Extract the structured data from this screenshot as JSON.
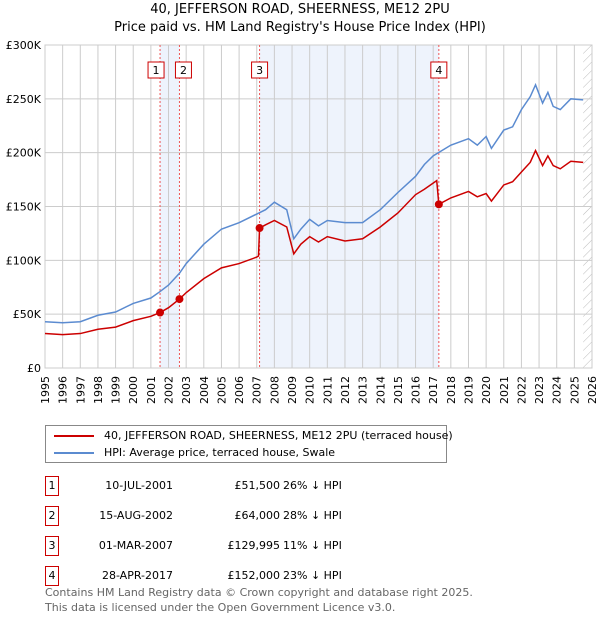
{
  "chart_data": {
    "type": "line",
    "title": "40, JEFFERSON ROAD, SHEERNESS, ME12 2PU",
    "subtitle": "Price paid vs. HM Land Registry's House Price Index (HPI)",
    "xlim": [
      1995,
      2026
    ],
    "ylim": [
      0,
      300000
    ],
    "x_ticks": [
      "1995",
      "1996",
      "1997",
      "1998",
      "1999",
      "2000",
      "2001",
      "2002",
      "2003",
      "2004",
      "2005",
      "2006",
      "2007",
      "2008",
      "2009",
      "2010",
      "2011",
      "2012",
      "2013",
      "2014",
      "2015",
      "2016",
      "2017",
      "2018",
      "2019",
      "2020",
      "2021",
      "2022",
      "2023",
      "2024",
      "2025",
      "2026"
    ],
    "y_ticks": [
      {
        "v": 0,
        "l": "£0"
      },
      {
        "v": 50000,
        "l": "£50K"
      },
      {
        "v": 100000,
        "l": "£100K"
      },
      {
        "v": 150000,
        "l": "£150K"
      },
      {
        "v": 200000,
        "l": "£200K"
      },
      {
        "v": 250000,
        "l": "£250K"
      },
      {
        "v": 300000,
        "l": "£300K"
      }
    ],
    "grid": true,
    "shaded_ranges": [
      [
        2001.52,
        2002.62
      ],
      [
        2007.16,
        2017.32
      ]
    ],
    "forecast_from": 2025.5,
    "series": [
      {
        "name": "40, JEFFERSON ROAD, SHEERNESS, ME12 2PU (terraced house)",
        "color": "#cc0000",
        "x": [
          1995,
          1996,
          1997,
          1998,
          1999,
          2000,
          2001,
          2001.52,
          2002,
          2002.62,
          2003,
          2004,
          2005,
          2006,
          2007,
          2007.1,
          2007.16,
          2007.5,
          2008,
          2008.7,
          2009.1,
          2009.5,
          2010,
          2010.5,
          2011,
          2012,
          2013,
          2014,
          2015,
          2016,
          2016.5,
          2017.2,
          2017.32,
          2018,
          2019,
          2019.5,
          2020,
          2020.3,
          2021,
          2021.5,
          2022,
          2022.5,
          2022.8,
          2023.2,
          2023.5,
          2023.8,
          2024.2,
          2024.8,
          2025.5
        ],
        "y": [
          32000,
          31000,
          32000,
          36000,
          38000,
          44000,
          48000,
          51500,
          56000,
          64000,
          70000,
          83000,
          93000,
          97000,
          103000,
          104000,
          129995,
          133000,
          137000,
          131000,
          106000,
          115000,
          122000,
          117000,
          122000,
          118000,
          120000,
          131000,
          144000,
          161000,
          166000,
          174000,
          152000,
          158000,
          164000,
          159000,
          162000,
          155000,
          170000,
          173000,
          182000,
          191000,
          202000,
          188000,
          197000,
          188000,
          185000,
          192000,
          191000
        ]
      },
      {
        "name": "HPI: Average price, terraced house, Swale",
        "color": "#5b8bd0",
        "x": [
          1995,
          1996,
          1997,
          1998,
          1999,
          2000,
          2001,
          2001.52,
          2002,
          2002.62,
          2003,
          2004,
          2005,
          2006,
          2007,
          2007.5,
          2008,
          2008.7,
          2009.1,
          2009.5,
          2010,
          2010.5,
          2011,
          2012,
          2013,
          2014,
          2015,
          2016,
          2016.5,
          2017,
          2018,
          2019,
          2019.5,
          2020,
          2020.3,
          2021,
          2021.5,
          2022,
          2022.5,
          2022.8,
          2023.2,
          2023.5,
          2023.8,
          2024.2,
          2024.8,
          2025.5
        ],
        "y": [
          43000,
          42000,
          43000,
          49000,
          52000,
          60000,
          65000,
          71000,
          77000,
          88000,
          97000,
          115000,
          129000,
          135000,
          143000,
          147000,
          154000,
          147000,
          120000,
          129000,
          138000,
          132000,
          137000,
          135000,
          135000,
          147000,
          163000,
          178000,
          189000,
          197000,
          207000,
          213000,
          207000,
          215000,
          204000,
          221000,
          224000,
          240000,
          252000,
          263000,
          246000,
          256000,
          243000,
          240000,
          250000,
          249000
        ]
      }
    ],
    "sales": [
      {
        "n": "1",
        "x": 2001.52,
        "y": 51500,
        "date": "10-JUL-2001",
        "price": "£51,500",
        "hpi": "26% ↓ HPI"
      },
      {
        "n": "2",
        "x": 2002.62,
        "y": 64000,
        "date": "15-AUG-2002",
        "price": "£64,000",
        "hpi": "28% ↓ HPI"
      },
      {
        "n": "3",
        "x": 2007.16,
        "y": 129995,
        "date": "01-MAR-2007",
        "price": "£129,995",
        "hpi": "11% ↓ HPI"
      },
      {
        "n": "4",
        "x": 2017.32,
        "y": 152000,
        "date": "28-APR-2017",
        "price": "£152,000",
        "hpi": "23% ↓ HPI"
      }
    ]
  },
  "footer": {
    "line1": "Contains HM Land Registry data © Crown copyright and database right 2025.",
    "line2": "This data is licensed under the Open Government Licence v3.0."
  }
}
